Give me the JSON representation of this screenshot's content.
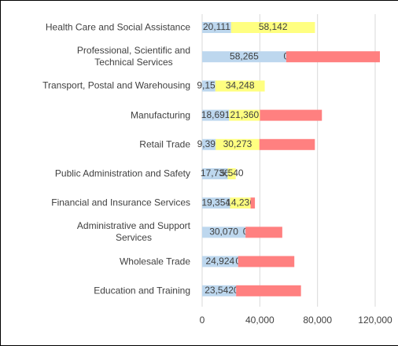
{
  "chart_data": {
    "type": "stacked_barh",
    "categories": [
      "Health Care and Social Assistance",
      "Professional, Scientific and\nTechnical Services",
      "Transport, Postal and Warehousing",
      "Manufacturing",
      "Retail Trade",
      "Public Administration and Safety",
      "Financial and Insurance Services",
      "Administrative and Support\nServices",
      "Wholesale Trade",
      "Education and Training"
    ],
    "series": [
      {
        "color": "#bdd7ee",
        "values": [
          20111,
          58265,
          9159,
          18691,
          9392,
          17736,
          19354,
          30070,
          24924,
          23542
        ],
        "value_labels": [
          "20,111",
          "58,265",
          "9,159",
          "18,691",
          "9,392",
          "17,736",
          "19,354",
          "30,070",
          "24,924",
          "23,542"
        ]
      },
      {
        "color": "#ffff80",
        "values": [
          58142,
          0,
          34248,
          21360,
          30273,
          5540,
          14236,
          0,
          0,
          0
        ],
        "value_labels": [
          "58,142",
          "0",
          "34,248",
          "21,360",
          "30,273",
          "5,540",
          "14,236",
          "0",
          "0",
          "0"
        ]
      },
      {
        "color": "#ff8080",
        "values": [
          0,
          65000,
          0,
          43000,
          38500,
          0,
          3000,
          25500,
          39000,
          45000
        ]
      }
    ],
    "xlim": [
      0,
      120000
    ],
    "xticks": [
      0,
      {
        "value": 40000,
        "label": "40,000"
      },
      {
        "value": 80000,
        "label": "80,000"
      },
      {
        "value": 120000,
        "label": "120,000"
      }
    ],
    "grid": true
  }
}
